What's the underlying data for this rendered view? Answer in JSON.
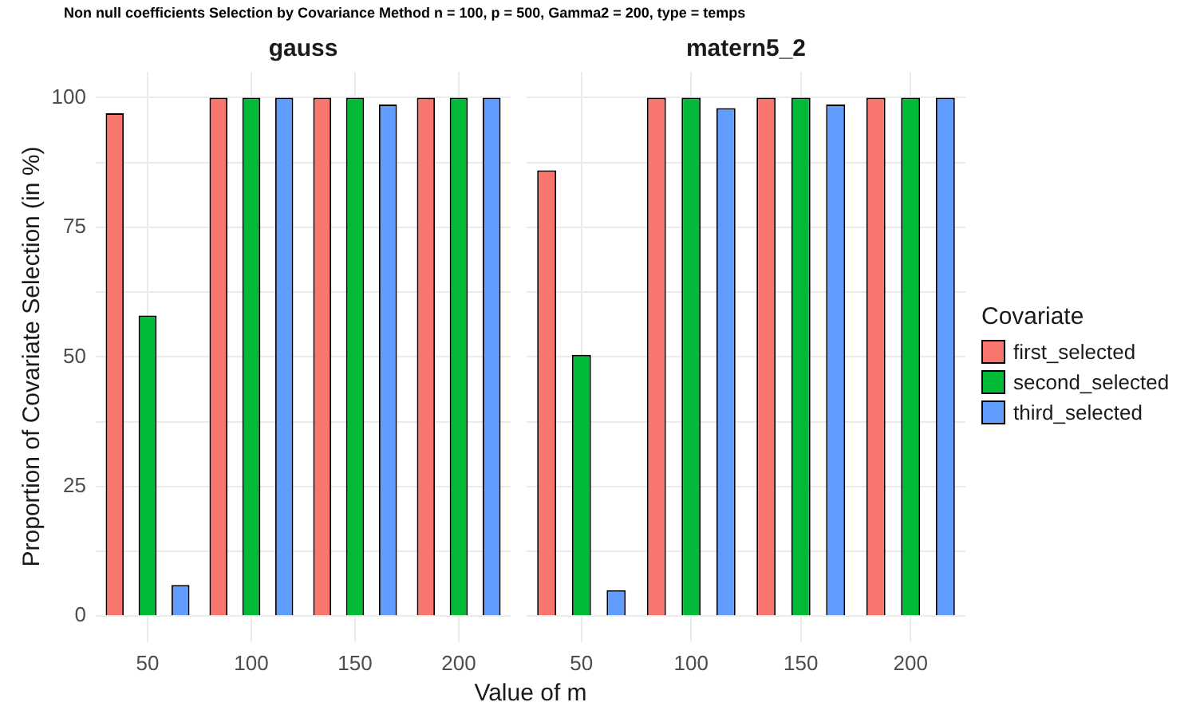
{
  "chart_data": [
    {
      "type": "bar",
      "title": "Non null coefficients Selection by Covariance Method n = 100, p = 500, Gamma2 = 200, type = temps",
      "subtitle": "gauss",
      "xlabel": "Value of m",
      "ylabel": "Proportion of Covariate Selection (in %)",
      "legend_title": "Covariate",
      "legend": "right",
      "categories": [
        "50",
        "100",
        "150",
        "200"
      ],
      "series": [
        {
          "name": "first_selected",
          "color": "#f8766d",
          "values": [
            97,
            100,
            100,
            100
          ]
        },
        {
          "name": "second_selected",
          "color": "#00ba38",
          "values": [
            58,
            100,
            100,
            100
          ]
        },
        {
          "name": "third_selected",
          "color": "#619cff",
          "values": [
            6,
            100,
            98.7,
            100
          ]
        }
      ],
      "ylim": [
        -5,
        105
      ],
      "yticks": [
        0,
        {
          "value": 12.5,
          "label": null
        },
        25,
        {
          "value": 37.5,
          "label": null
        },
        50,
        {
          "value": 62.5,
          "label": null
        },
        75,
        {
          "value": 87.5,
          "label": null
        },
        100
      ],
      "grid": true
    },
    {
      "type": "bar",
      "subtitle": "matern5_2",
      "categories": [
        "50",
        "100",
        "150",
        "200"
      ],
      "series": [
        {
          "color": "#f8766d",
          "values": [
            86,
            100,
            100,
            100
          ]
        },
        {
          "color": "#00ba38",
          "values": [
            50.4,
            100,
            100,
            100
          ]
        },
        {
          "color": "#619cff",
          "values": [
            5,
            98,
            98.7,
            100
          ]
        }
      ],
      "ylim": [
        -5,
        105
      ],
      "yticks": [
        0,
        {
          "value": 12.5,
          "label": null
        },
        25,
        {
          "value": 37.5,
          "label": null
        },
        50,
        {
          "value": 62.5,
          "label": null
        },
        75,
        {
          "value": 87.5,
          "label": null
        },
        100
      ],
      "grid": true,
      "tick_labels": "x"
    }
  ]
}
